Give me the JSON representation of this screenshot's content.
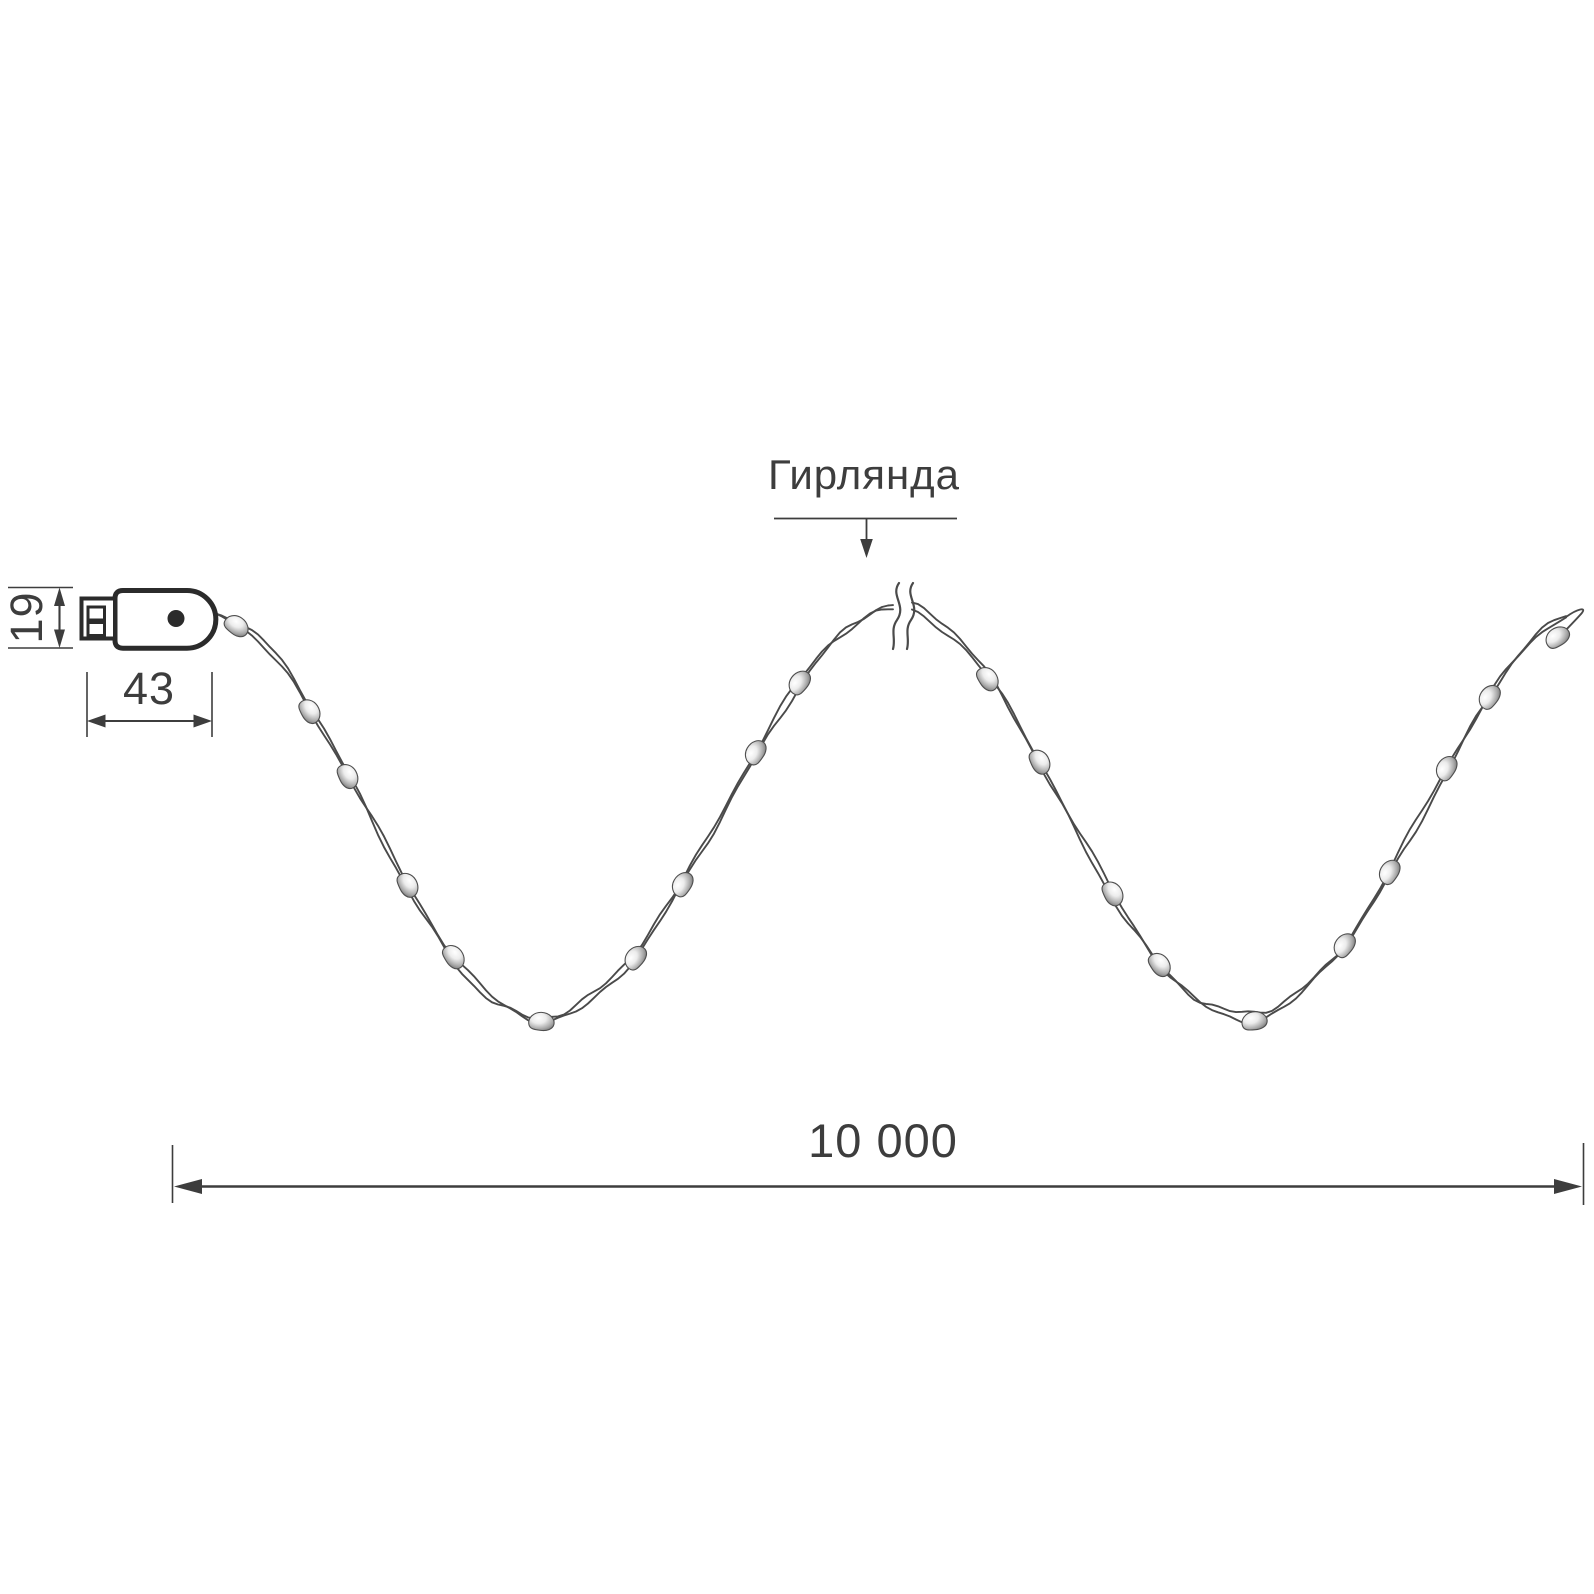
{
  "diagram": {
    "product_label": "Гирлянда",
    "dimensions": {
      "connector_height": "19",
      "connector_length": "43",
      "garland_length": "10 000"
    },
    "led_count": 20,
    "colors": {
      "line": "#3d3d3d",
      "connector_outline": "#2b2b2b",
      "wire": "#4a4a4a",
      "background": "#ffffff"
    }
  }
}
